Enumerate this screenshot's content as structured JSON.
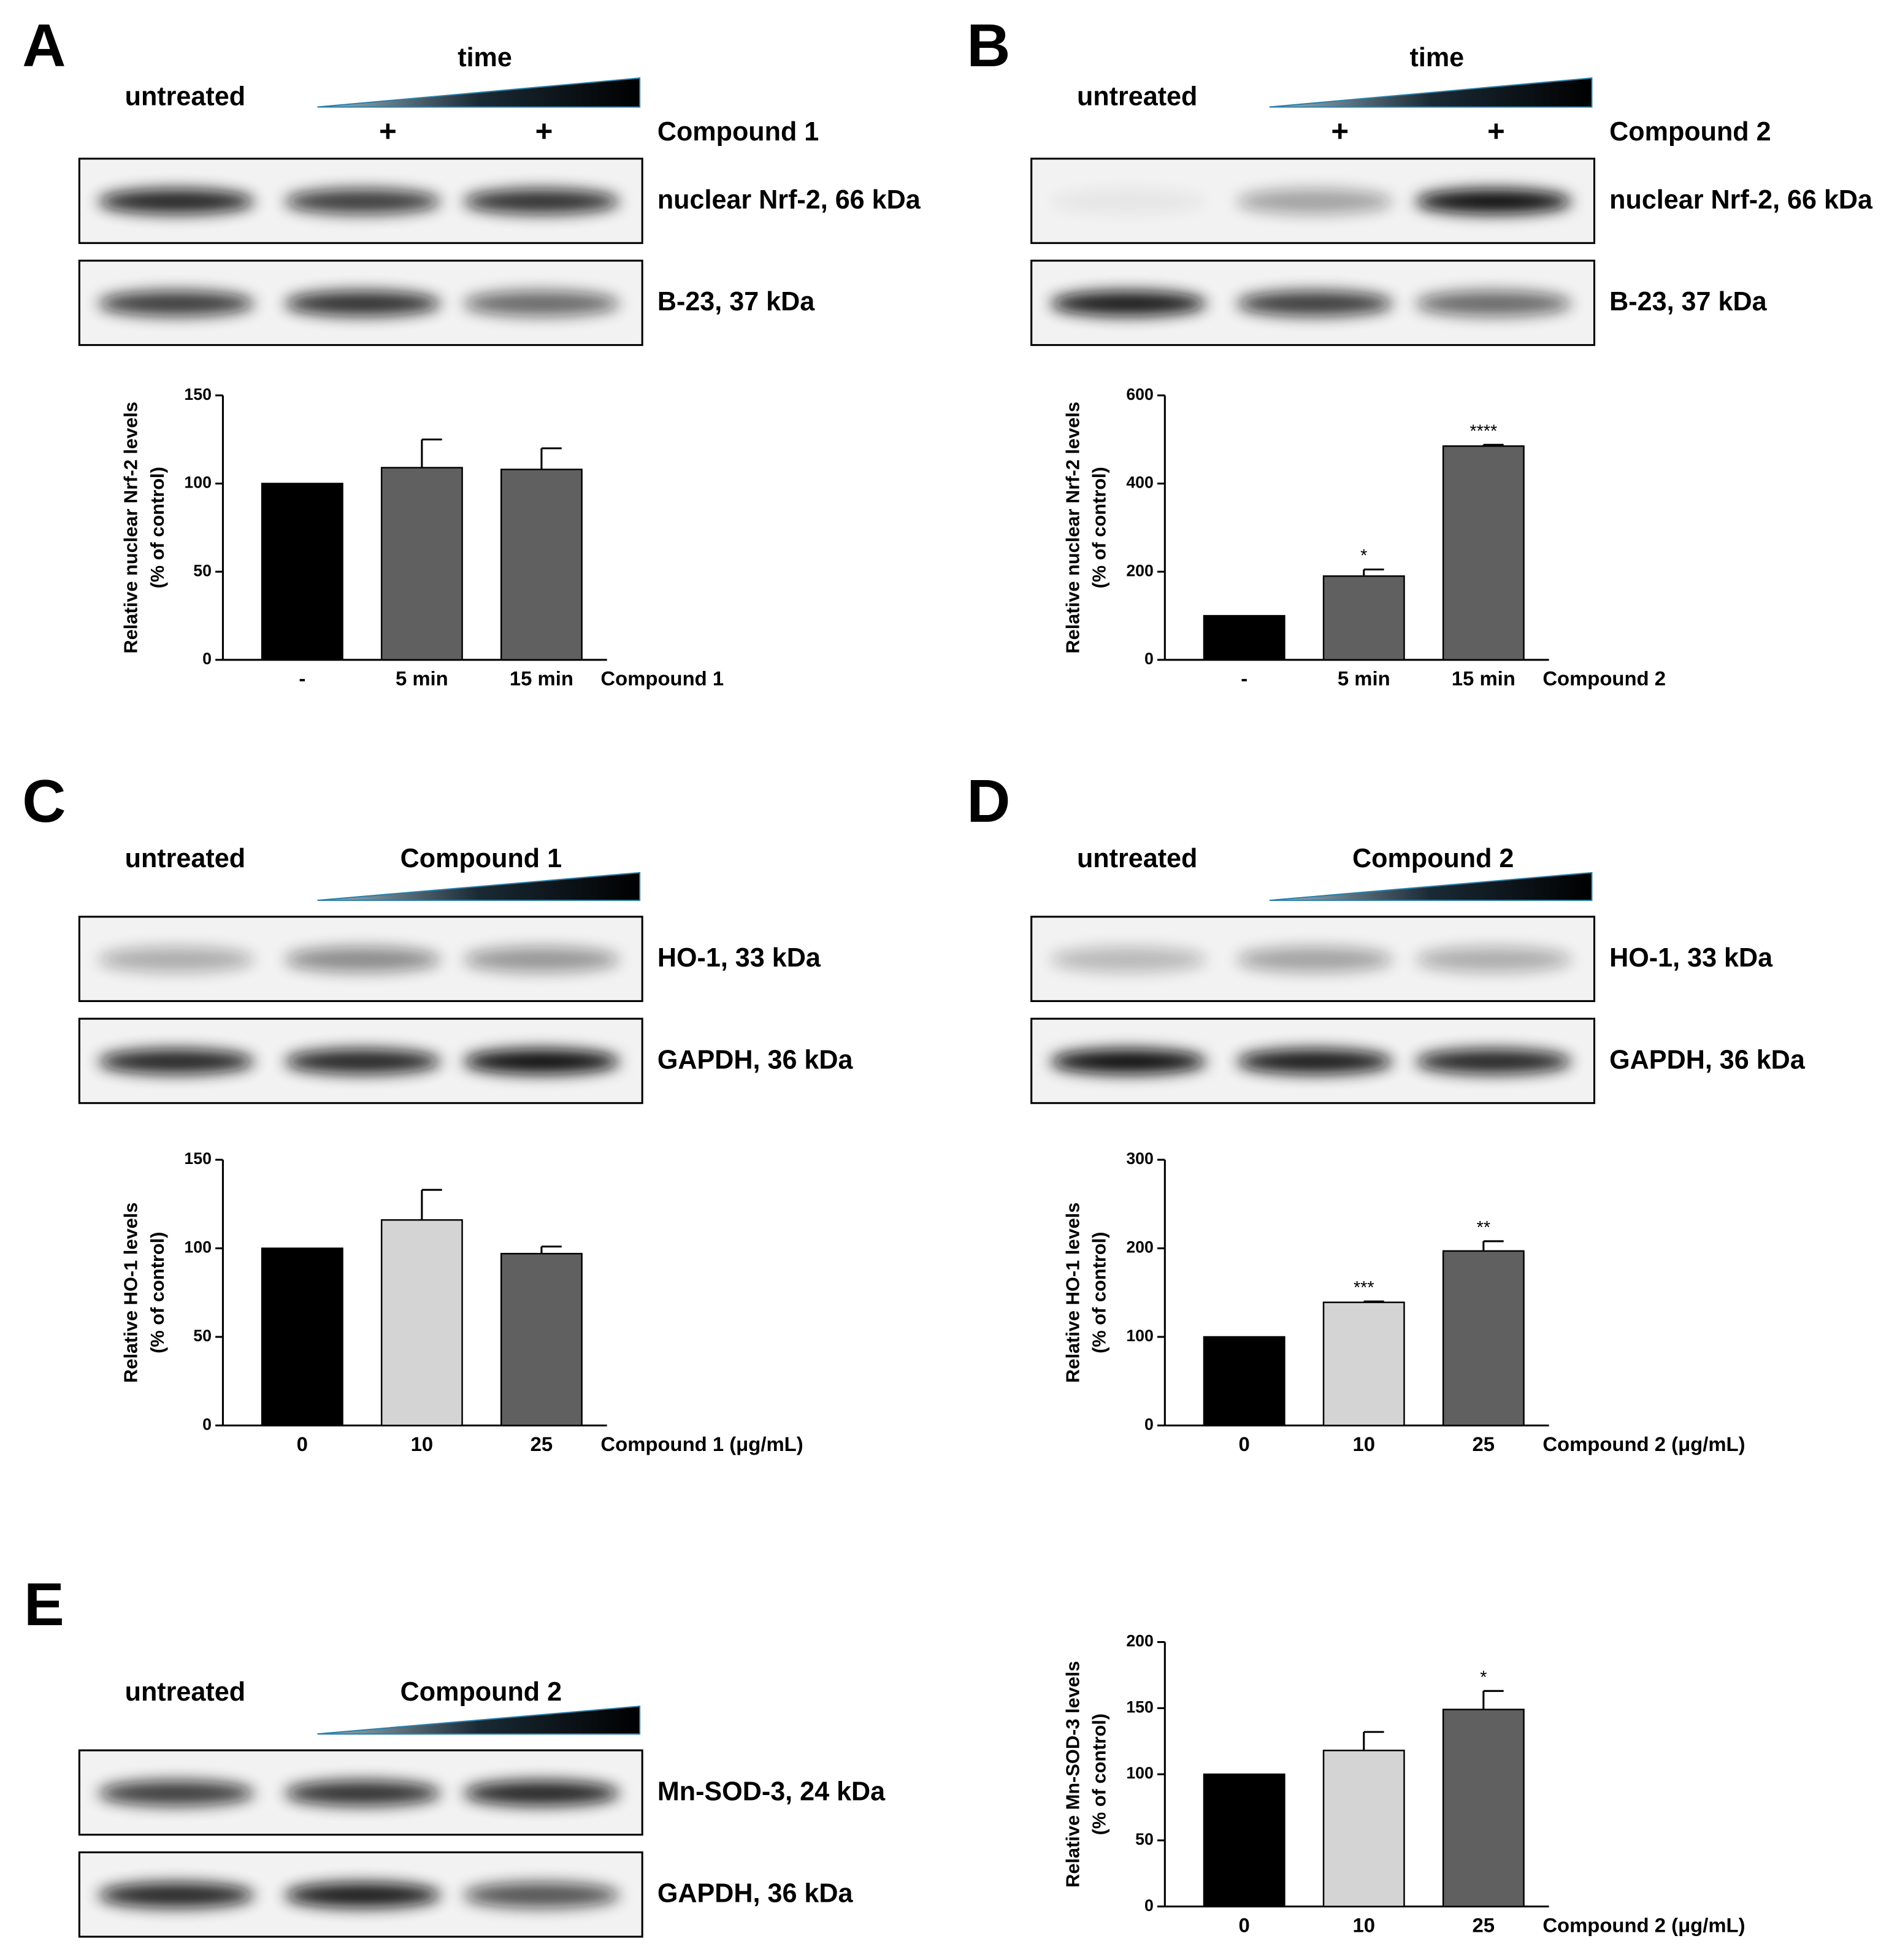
{
  "panels": [
    {
      "label": "A",
      "untreated": "untreated",
      "top": "time",
      "marks": [
        "+",
        "+"
      ],
      "treatment": "Compound 1",
      "bands": [
        "nuclear Nrf-2, 66 kDa",
        "B-23, 37 kDa"
      ]
    },
    {
      "label": "B",
      "untreated": "untreated",
      "top": "time",
      "marks": [
        "+",
        "+"
      ],
      "treatment": "Compound 2",
      "bands": [
        "nuclear Nrf-2, 66 kDa",
        "B-23, 37 kDa"
      ]
    },
    {
      "label": "C",
      "untreated": "untreated",
      "treatment": "Compound 1",
      "bands": [
        "HO-1, 33 kDa",
        "GAPDH, 36 kDa"
      ]
    },
    {
      "label": "D",
      "untreated": "untreated",
      "treatment": "Compound 2",
      "bands": [
        "HO-1, 33 kDa",
        "GAPDH, 36 kDa"
      ]
    },
    {
      "label": "E",
      "untreated": "untreated",
      "treatment": "Compound 2",
      "bands": [
        "Mn-SOD-3, 24 kDa",
        "GAPDH, 36 kDa"
      ]
    }
  ],
  "chart_data": [
    {
      "type": "bar",
      "ylabel": [
        "Relative nuclear Nrf-2 levels",
        "(% of control)"
      ],
      "xlabel": "Compound 1",
      "categories": [
        "-",
        "5 min",
        "15 min"
      ],
      "values": [
        100,
        109,
        108
      ],
      "errors": [
        null,
        16,
        12
      ],
      "colors": [
        "#000000",
        "#606060",
        "#606060"
      ],
      "annotations": [
        null,
        null,
        null
      ],
      "ylim": [
        0,
        150
      ],
      "yticks": [
        0,
        50,
        100,
        150
      ]
    },
    {
      "type": "bar",
      "ylabel": [
        "Relative nuclear Nrf-2 levels",
        "(% of control)"
      ],
      "xlabel": "Compound 2",
      "categories": [
        "-",
        "5 min",
        "15 min"
      ],
      "values": [
        100,
        190,
        485
      ],
      "errors": [
        null,
        15,
        3
      ],
      "colors": [
        "#000000",
        "#606060",
        "#606060"
      ],
      "annotations": [
        null,
        "*",
        "****"
      ],
      "ylim": [
        0,
        600
      ],
      "yticks": [
        0,
        200,
        400,
        600
      ]
    },
    {
      "type": "bar",
      "ylabel": [
        "Relative HO-1 levels",
        "(% of control)"
      ],
      "xlabel": "Compound 1 (μg/mL)",
      "categories": [
        "0",
        "10",
        "25"
      ],
      "values": [
        100,
        116,
        97
      ],
      "errors": [
        null,
        17,
        4
      ],
      "colors": [
        "#000000",
        "#d4d4d4",
        "#606060"
      ],
      "annotations": [
        null,
        null,
        null
      ],
      "ylim": [
        0,
        150
      ],
      "yticks": [
        0,
        50,
        100,
        150
      ]
    },
    {
      "type": "bar",
      "ylabel": [
        "Relative HO-1 levels",
        "(% of control)"
      ],
      "xlabel": "Compound 2 (μg/mL)",
      "categories": [
        "0",
        "10",
        "25"
      ],
      "values": [
        100,
        139,
        197
      ],
      "errors": [
        null,
        1,
        11
      ],
      "colors": [
        "#000000",
        "#d4d4d4",
        "#606060"
      ],
      "annotations": [
        null,
        "***",
        "**"
      ],
      "ylim": [
        0,
        300
      ],
      "yticks": [
        0,
        100,
        200,
        300
      ]
    },
    {
      "type": "bar",
      "ylabel": [
        "Relative Mn-SOD-3 levels",
        "(% of control)"
      ],
      "xlabel": "Compound 2 (μg/mL)",
      "categories": [
        "0",
        "10",
        "25"
      ],
      "values": [
        100,
        118,
        149
      ],
      "errors": [
        null,
        14,
        14
      ],
      "colors": [
        "#000000",
        "#d4d4d4",
        "#606060"
      ],
      "annotations": [
        null,
        null,
        "*"
      ],
      "ylim": [
        0,
        200
      ],
      "yticks": [
        0,
        50,
        100,
        150,
        200
      ]
    }
  ]
}
